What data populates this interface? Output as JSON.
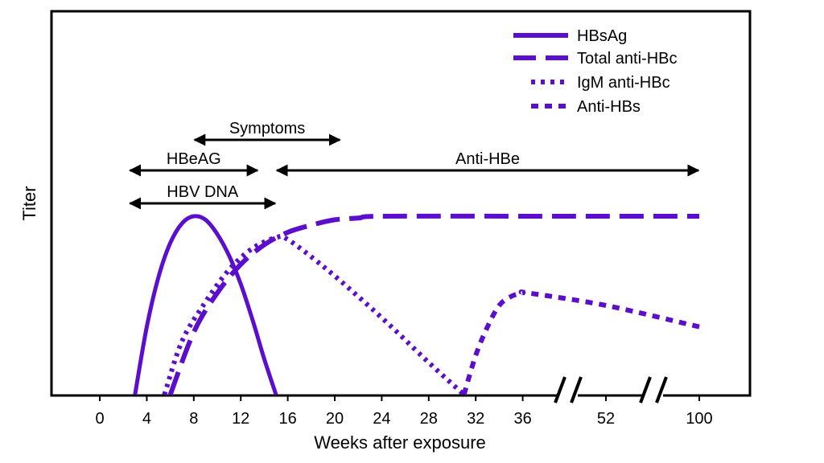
{
  "colors": {
    "series": "#5b0ecc",
    "axis": "#000000",
    "arrow": "#000000"
  },
  "chart_data": {
    "type": "line",
    "title": "",
    "xlabel": "Weeks after exposure",
    "ylabel": "Titer",
    "x_ticks": [
      "0",
      "4",
      "8",
      "12",
      "16",
      "20",
      "24",
      "28",
      "32",
      "36",
      "52",
      "100"
    ],
    "axis_breaks": [
      "between 36 and 52",
      "between 52 and 100"
    ],
    "legend_position": "top-right",
    "series": [
      {
        "name": "HBsAg",
        "style": "solid",
        "x": [
          3,
          4,
          5,
          6,
          7,
          8,
          9,
          10,
          11,
          12,
          13,
          14,
          15
        ],
        "y": [
          0,
          0.38,
          0.66,
          0.85,
          0.96,
          1.0,
          0.98,
          0.9,
          0.78,
          0.62,
          0.42,
          0.2,
          0
        ]
      },
      {
        "name": "Total anti-HBc",
        "style": "dashed",
        "x": [
          6,
          8,
          10,
          12,
          14,
          16,
          18,
          20,
          22,
          24,
          36,
          52,
          100
        ],
        "y": [
          0,
          0.35,
          0.57,
          0.73,
          0.84,
          0.91,
          0.95,
          0.98,
          0.99,
          1.0,
          1.0,
          1.0,
          1.0
        ]
      },
      {
        "name": "IgM anti-HBc",
        "style": "dotted",
        "x": [
          5.5,
          7,
          9,
          11,
          13,
          15,
          16,
          19,
          22,
          25,
          28,
          31
        ],
        "y": [
          0,
          0.3,
          0.52,
          0.7,
          0.82,
          0.88,
          0.87,
          0.72,
          0.55,
          0.37,
          0.18,
          0
        ]
      },
      {
        "name": "Anti-HBs",
        "style": "short-dashed",
        "x": [
          31,
          32,
          33,
          34,
          35,
          36,
          37,
          52,
          100
        ],
        "y": [
          0,
          0.22,
          0.38,
          0.5,
          0.55,
          0.57,
          0.57,
          0.5,
          0.38
        ]
      }
    ],
    "spans": [
      {
        "label": "Symptoms",
        "start": 8,
        "end": 20.5
      },
      {
        "label": "HBeAG",
        "start": 2.5,
        "end": 13.5
      },
      {
        "label": "Anti-HBe",
        "start": 15,
        "end": 100
      },
      {
        "label": "HBV DNA",
        "start": 2.5,
        "end": 15
      }
    ]
  }
}
